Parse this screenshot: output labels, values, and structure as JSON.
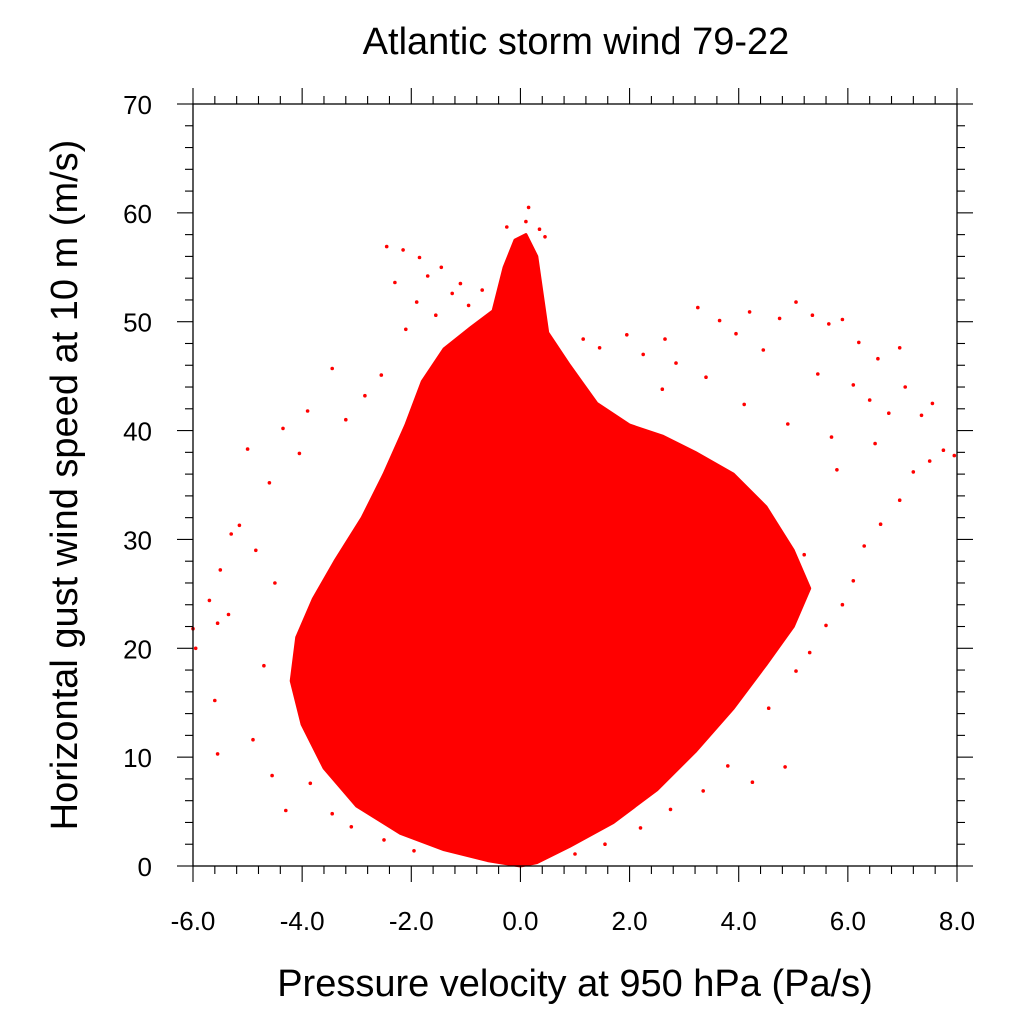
{
  "chart_data": {
    "type": "scatter",
    "title": "Atlantic storm wind 79-22",
    "xlabel": "Pressure velocity at 950 hPa (Pa/s)",
    "ylabel": "Horizontal gust wind speed at 10 m (m/s)",
    "xlim": [
      -6.0,
      8.0
    ],
    "ylim": [
      0,
      70
    ],
    "x_ticks": [
      "-6.0",
      "-4.0",
      "-2.0",
      "0.0",
      "2.0",
      "4.0",
      "6.0",
      "8.0"
    ],
    "y_ticks": [
      "0",
      "10",
      "20",
      "30",
      "40",
      "50",
      "60",
      "70"
    ],
    "grid": false,
    "marker_color": "#ff0000",
    "series": [
      {
        "cloud_outline": [
          [
            0.0,
            0.0
          ],
          [
            -0.6,
            0.5
          ],
          [
            -1.4,
            1.5
          ],
          [
            -2.2,
            3.0
          ],
          [
            -3.0,
            5.5
          ],
          [
            -3.6,
            9.0
          ],
          [
            -4.0,
            13.0
          ],
          [
            -4.2,
            17.0
          ],
          [
            -4.1,
            21.0
          ],
          [
            -3.8,
            24.5
          ],
          [
            -3.4,
            28.0
          ],
          [
            -2.9,
            32.0
          ],
          [
            -2.5,
            36.0
          ],
          [
            -2.1,
            40.5
          ],
          [
            -1.8,
            44.5
          ],
          [
            -1.4,
            47.5
          ],
          [
            -0.9,
            49.5
          ],
          [
            -0.5,
            51.0
          ],
          [
            -0.3,
            55.0
          ],
          [
            -0.1,
            57.5
          ],
          [
            0.1,
            58.0
          ],
          [
            0.3,
            56.0
          ],
          [
            0.5,
            49.0
          ],
          [
            0.9,
            46.0
          ],
          [
            1.4,
            42.5
          ],
          [
            2.0,
            40.5
          ],
          [
            2.6,
            39.5
          ],
          [
            3.2,
            38.0
          ],
          [
            3.9,
            36.0
          ],
          [
            4.5,
            33.0
          ],
          [
            5.0,
            29.0
          ],
          [
            5.3,
            25.5
          ],
          [
            5.0,
            22.0
          ],
          [
            4.5,
            18.5
          ],
          [
            3.9,
            14.5
          ],
          [
            3.2,
            10.5
          ],
          [
            2.5,
            7.0
          ],
          [
            1.7,
            4.0
          ],
          [
            0.9,
            1.8
          ],
          [
            0.3,
            0.3
          ]
        ],
        "points": [
          [
            0.15,
            60.5
          ],
          [
            0.1,
            59.2
          ],
          [
            -0.25,
            58.7
          ],
          [
            0.35,
            58.5
          ],
          [
            0.45,
            57.8
          ],
          [
            -2.45,
            56.9
          ],
          [
            -2.15,
            56.6
          ],
          [
            -1.85,
            55.9
          ],
          [
            -1.45,
            55.0
          ],
          [
            -1.7,
            54.2
          ],
          [
            -1.1,
            53.5
          ],
          [
            -2.3,
            53.6
          ],
          [
            -1.25,
            52.6
          ],
          [
            -0.7,
            52.9
          ],
          [
            -0.95,
            51.5
          ],
          [
            -1.9,
            51.8
          ],
          [
            -1.55,
            50.6
          ],
          [
            -2.1,
            49.3
          ],
          [
            -2.55,
            45.1
          ],
          [
            -3.45,
            45.7
          ],
          [
            -2.85,
            43.2
          ],
          [
            -3.2,
            41.0
          ],
          [
            -3.9,
            41.8
          ],
          [
            -4.05,
            37.9
          ],
          [
            -4.35,
            40.2
          ],
          [
            -4.6,
            35.2
          ],
          [
            -5.0,
            38.3
          ],
          [
            -5.15,
            31.3
          ],
          [
            -5.3,
            30.5
          ],
          [
            -5.5,
            27.2
          ],
          [
            -4.85,
            29.0
          ],
          [
            -5.7,
            24.4
          ],
          [
            -5.35,
            23.1
          ],
          [
            -5.55,
            22.3
          ],
          [
            -6.0,
            21.8
          ],
          [
            -5.95,
            20.0
          ],
          [
            -5.6,
            15.2
          ],
          [
            -5.55,
            10.3
          ],
          [
            -4.55,
            8.3
          ],
          [
            -4.3,
            5.1
          ],
          [
            -3.85,
            7.6
          ],
          [
            -3.45,
            4.8
          ],
          [
            -3.1,
            3.6
          ],
          [
            -2.5,
            2.4
          ],
          [
            -1.95,
            1.4
          ],
          [
            -4.9,
            11.6
          ],
          [
            -4.7,
            18.4
          ],
          [
            -4.5,
            26.0
          ],
          [
            1.15,
            48.4
          ],
          [
            1.45,
            47.6
          ],
          [
            1.95,
            48.8
          ],
          [
            2.25,
            47.0
          ],
          [
            2.65,
            48.4
          ],
          [
            2.85,
            46.2
          ],
          [
            3.25,
            51.3
          ],
          [
            3.65,
            50.1
          ],
          [
            3.95,
            48.9
          ],
          [
            4.2,
            50.9
          ],
          [
            4.45,
            47.4
          ],
          [
            4.75,
            50.3
          ],
          [
            5.05,
            51.8
          ],
          [
            5.35,
            50.6
          ],
          [
            5.65,
            49.8
          ],
          [
            5.9,
            50.2
          ],
          [
            6.2,
            48.1
          ],
          [
            6.55,
            46.6
          ],
          [
            6.95,
            47.6
          ],
          [
            5.45,
            45.2
          ],
          [
            6.1,
            44.2
          ],
          [
            6.4,
            42.8
          ],
          [
            6.75,
            41.6
          ],
          [
            7.05,
            44.0
          ],
          [
            7.35,
            41.4
          ],
          [
            7.55,
            42.5
          ],
          [
            7.75,
            38.2
          ],
          [
            7.95,
            37.7
          ],
          [
            7.5,
            37.2
          ],
          [
            7.2,
            36.2
          ],
          [
            6.95,
            33.6
          ],
          [
            6.6,
            31.4
          ],
          [
            6.3,
            29.4
          ],
          [
            6.1,
            26.2
          ],
          [
            5.9,
            24.0
          ],
          [
            5.6,
            22.1
          ],
          [
            5.3,
            19.6
          ],
          [
            5.05,
            17.9
          ],
          [
            4.85,
            9.1
          ],
          [
            4.25,
            7.7
          ],
          [
            3.8,
            9.2
          ],
          [
            3.35,
            6.9
          ],
          [
            2.75,
            5.2
          ],
          [
            2.2,
            3.5
          ],
          [
            1.55,
            2.0
          ],
          [
            1.0,
            1.1
          ],
          [
            4.55,
            14.5
          ],
          [
            5.2,
            28.6
          ],
          [
            5.8,
            36.4
          ],
          [
            6.5,
            38.8
          ],
          [
            2.6,
            43.8
          ],
          [
            3.4,
            44.9
          ],
          [
            4.1,
            42.4
          ],
          [
            4.9,
            40.6
          ],
          [
            5.7,
            39.4
          ]
        ]
      }
    ]
  }
}
